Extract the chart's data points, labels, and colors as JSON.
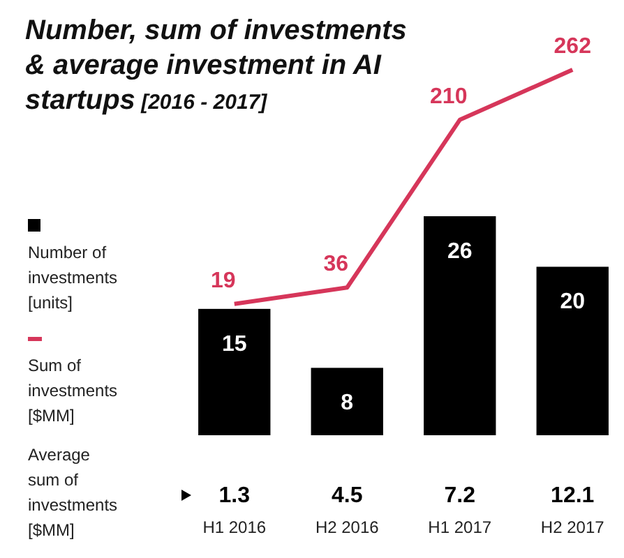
{
  "chart_data": {
    "type": "bar",
    "title": "Number, sum of investments & average investment in AI startups",
    "subtitle": "[2016 - 2017]",
    "categories": [
      "H1 2016",
      "H2 2016",
      "H1 2017",
      "H2 2017"
    ],
    "series": [
      {
        "name": "Number of investments [units]",
        "color": "#000000",
        "values": [
          15,
          8,
          26,
          20
        ]
      },
      {
        "name": "Sum of investments [$MM]",
        "type": "line",
        "axis": "y2",
        "color": "#d6365a",
        "values": [
          19,
          36,
          210,
          262
        ]
      }
    ],
    "annotations": [
      "Average sum of investments [$MM]",
      "1.3",
      "4.5",
      "7.2",
      "12.1"
    ],
    "data_labels": true,
    "legend": "left"
  }
}
